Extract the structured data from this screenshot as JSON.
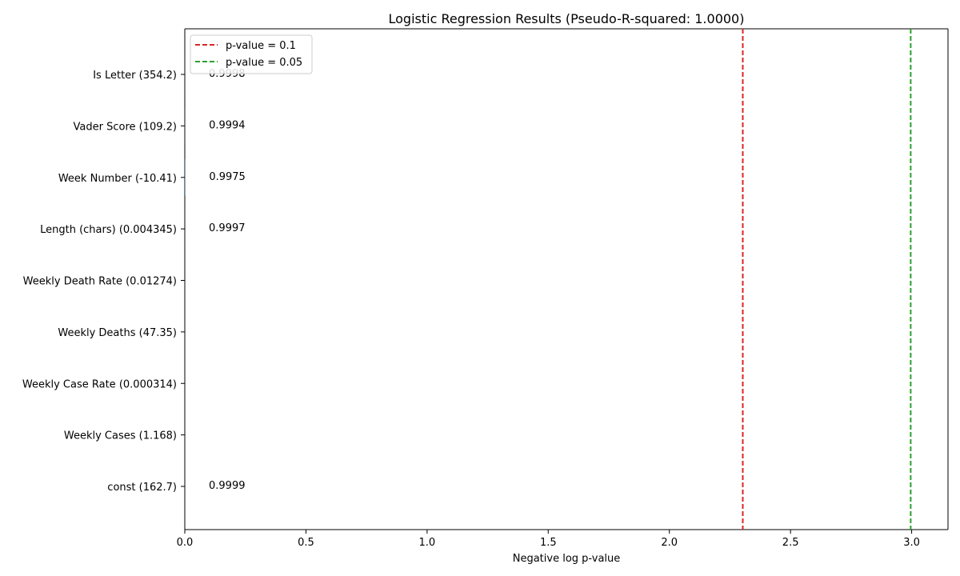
{
  "chart_data": {
    "type": "bar",
    "orientation": "horizontal",
    "title": "Logistic Regression Results (Pseudo-R-squared: 1.0000)",
    "xlabel": "Negative log p-value",
    "ylabel": "",
    "xlim": [
      0,
      3.15
    ],
    "xticks": [
      0.0,
      0.5,
      1.0,
      1.5,
      2.0,
      2.5,
      3.0
    ],
    "xtick_labels": [
      "0.0",
      "0.5",
      "1.0",
      "1.5",
      "2.0",
      "2.5",
      "3.0"
    ],
    "categories": [
      "Is Letter (354.2)",
      "Vader Score (109.2)",
      "Week Number (-10.41)",
      "Length (chars) (0.004345)",
      "Weekly Death Rate (0.01274)",
      "Weekly Deaths (47.35)",
      "Weekly Case Rate (0.000314)",
      "Weekly Cases (1.168)",
      "const (162.7)"
    ],
    "values": [
      0.0001,
      0.0003,
      0.0011,
      0.0001,
      0,
      0,
      0,
      0,
      0.0
    ],
    "data_labels": [
      "0.9998",
      "0.9994",
      "0.9975",
      "0.9997",
      "",
      "",
      "",
      "",
      "0.9999"
    ],
    "reference_lines": [
      {
        "label": "p-value = 0.1",
        "x": 2.303,
        "color": "#d62728",
        "style": "dashed"
      },
      {
        "label": "p-value = 0.05",
        "x": 2.996,
        "color": "#2ca02c",
        "style": "dashed"
      }
    ],
    "legend_placement": "top-left",
    "grid": false
  }
}
